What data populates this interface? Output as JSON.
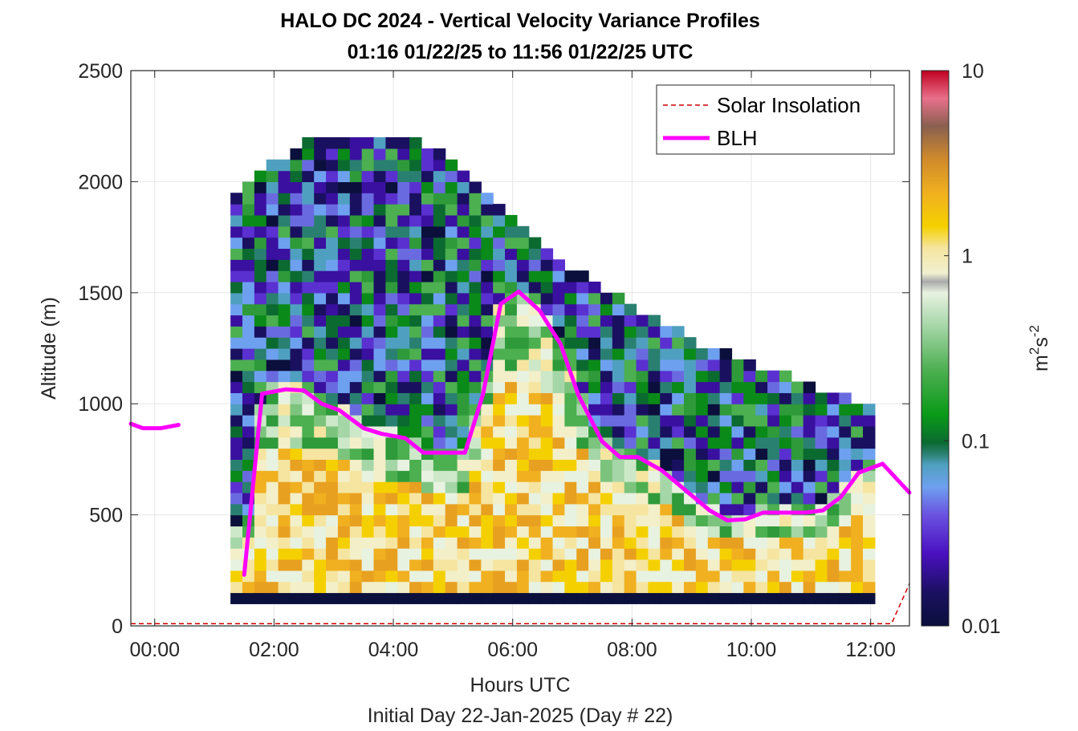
{
  "chart_data": {
    "type": "heatmap",
    "title": "HALO DC 2024 - Vertical Velocity Variance Profiles",
    "subtitle": "01:16 01/22/25 to 11:56 01/22/25  UTC",
    "xlabel": "Hours UTC",
    "xlabel2": "Initial Day 22-Jan-2025 (Day # 22)",
    "ylabel": "Altitude (m)",
    "xlim": [
      -0.4,
      12.65
    ],
    "ylim": [
      0,
      2500
    ],
    "x_ticks": [
      0,
      2,
      4,
      6,
      8,
      10,
      12
    ],
    "x_tick_labels": [
      "00:00",
      "02:00",
      "04:00",
      "06:00",
      "08:00",
      "10:00",
      "12:00"
    ],
    "y_ticks": [
      0,
      500,
      1000,
      1500,
      2000,
      2500
    ],
    "y_tick_labels": [
      "0",
      "500",
      "1000",
      "1500",
      "2000",
      "2500"
    ],
    "grid": true,
    "legend_position": "top-right",
    "colorbar": {
      "label_base": "m",
      "label_sup1": "2",
      "label_mid": "s",
      "label_sup2": "-2",
      "scale": "log",
      "range": [
        0.01,
        10
      ],
      "ticks": [
        0.01,
        0.1,
        1,
        10
      ],
      "tick_labels": [
        "0.01",
        "0.1",
        "1",
        "10"
      ]
    },
    "heatmap_extent": {
      "x_start": 1.27,
      "x_end": 11.97,
      "y_start": 100,
      "y_end": 2200,
      "y_step": 50
    },
    "series": [
      {
        "name": "Solar Insolation",
        "style": "dashed",
        "color": "#cc0000",
        "x": [
          -0.4,
          12.35,
          12.65
        ],
        "y": [
          10,
          10,
          190
        ]
      },
      {
        "name": "BLH",
        "style": "solid",
        "color": "#ff00ff",
        "segments": [
          {
            "x": [
              -0.4,
              -0.2,
              0.1,
              0.4
            ],
            "y": [
              910,
              890,
              890,
              905
            ]
          },
          {
            "x": [
              1.5,
              1.8,
              2.2,
              2.5,
              2.8,
              3.1,
              3.5,
              3.8,
              4.2,
              4.5,
              4.9,
              5.2,
              5.5,
              5.8,
              6.1,
              6.45,
              6.8,
              7.1,
              7.5,
              7.8,
              8.1,
              8.5,
              8.9,
              9.3,
              9.6,
              9.9,
              10.2,
              10.5,
              10.9,
              11.2,
              11.5,
              11.8,
              12.2,
              12.65
            ],
            "y": [
              230,
              1045,
              1065,
              1060,
              1000,
              970,
              890,
              865,
              845,
              780,
              780,
              780,
              1040,
              1450,
              1505,
              1420,
              1270,
              1040,
              830,
              760,
              760,
              700,
              610,
              520,
              475,
              480,
              510,
              510,
              510,
              520,
              580,
              690,
              730,
              600
            ]
          }
        ]
      }
    ]
  }
}
